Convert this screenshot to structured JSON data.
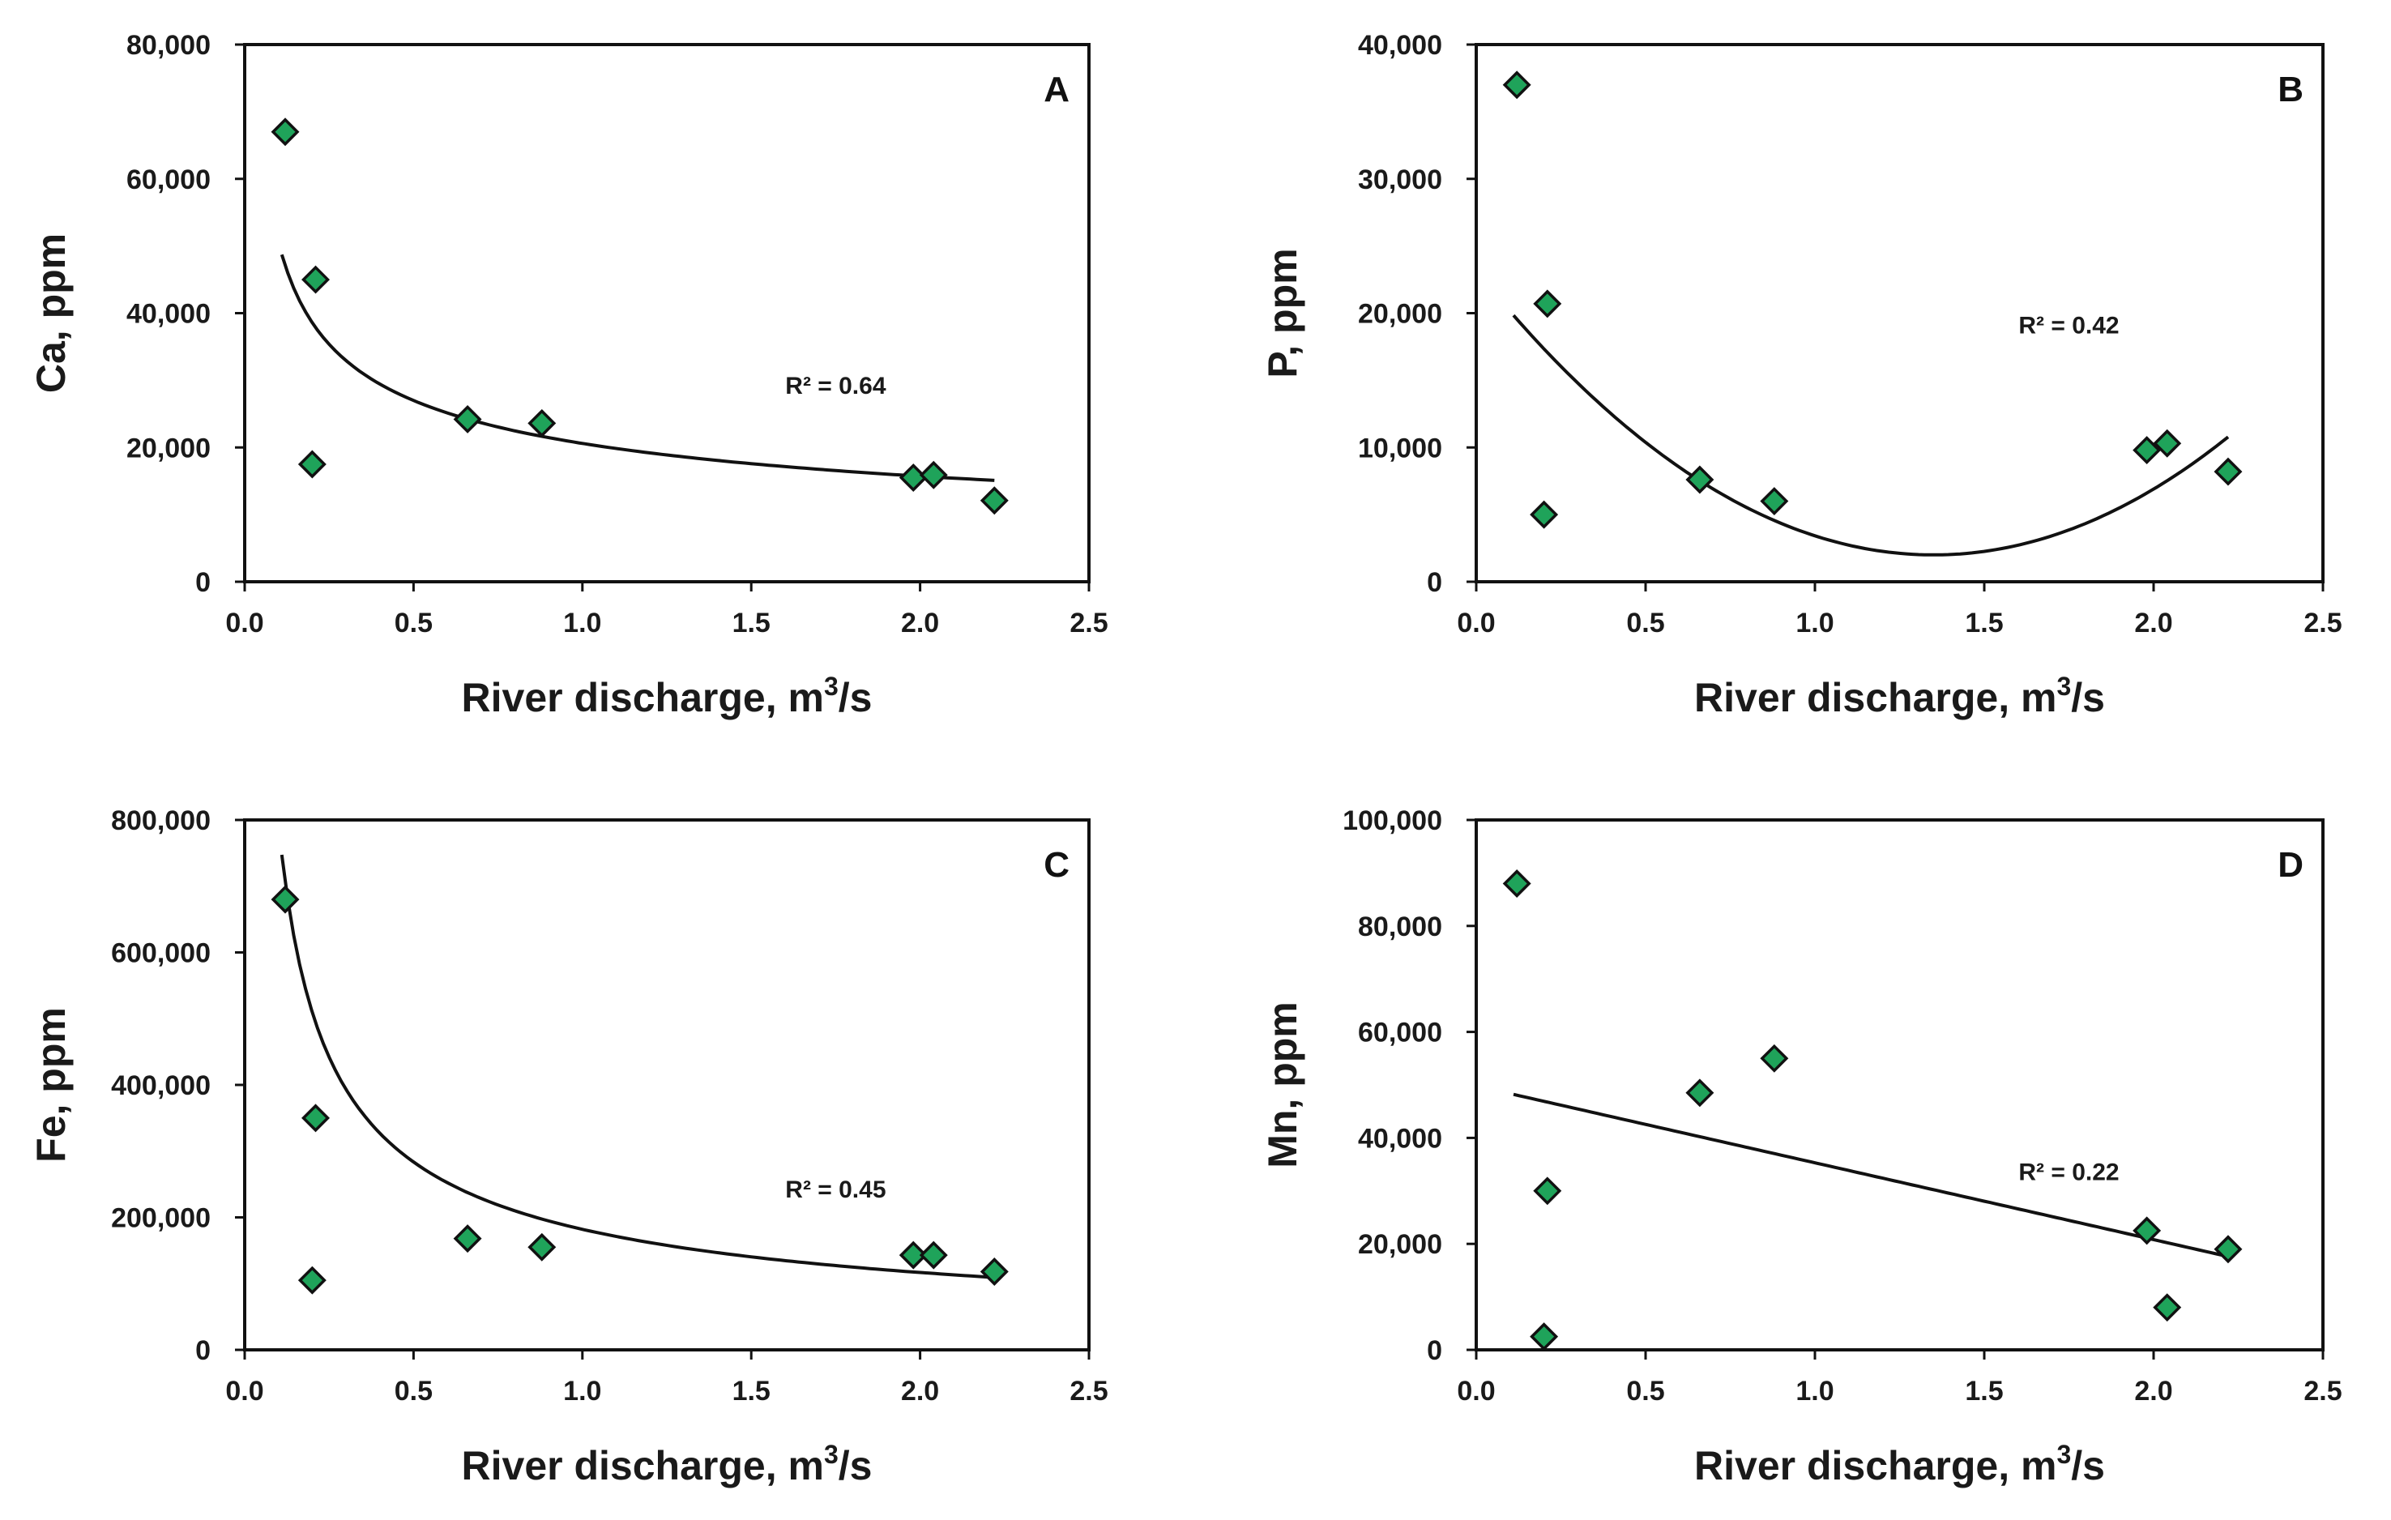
{
  "chart_data": [
    {
      "type": "scatter",
      "panel": "A",
      "xlabel": "River discharge, m",
      "xlabel_sup": "3",
      "xlabel_tail": "/s",
      "ylabel": "Ca, ppm",
      "xlim": [
        0,
        2.5
      ],
      "ylim": [
        0,
        80000
      ],
      "xticks": [
        "0.0",
        "0.5",
        "1.0",
        "1.5",
        "2.0",
        "2.5"
      ],
      "yticks": [
        "0",
        "20,000",
        "40,000",
        "60,000",
        "80,000"
      ],
      "x": [
        0.12,
        0.2,
        0.21,
        0.66,
        0.88,
        1.98,
        2.04,
        2.22
      ],
      "y": [
        67000,
        17500,
        45000,
        24200,
        23600,
        15500,
        15900,
        12100
      ],
      "trendline": {
        "type": "power",
        "a": 20600,
        "b": -0.39,
        "x_range": [
          0.11,
          2.22
        ]
      },
      "r2_label": "R² = 0.64",
      "r2_at": [
        1.75,
        28000
      ],
      "marker_color": "#1fa35a"
    },
    {
      "type": "scatter",
      "panel": "B",
      "xlabel": "River discharge, m",
      "xlabel_sup": "3",
      "xlabel_tail": "/s",
      "ylabel": "P, ppm",
      "xlim": [
        0,
        2.5
      ],
      "ylim": [
        0,
        40000
      ],
      "xticks": [
        "0.0",
        "0.5",
        "1.0",
        "1.5",
        "2.0",
        "2.5"
      ],
      "yticks": [
        "0",
        "10,000",
        "20,000",
        "30,000",
        "40,000"
      ],
      "x": [
        0.12,
        0.2,
        0.21,
        0.66,
        0.88,
        1.98,
        2.04,
        2.22
      ],
      "y": [
        37000,
        5000,
        20700,
        7600,
        6000,
        9800,
        10300,
        8200
      ],
      "trendline": {
        "type": "poly2",
        "a": 11600,
        "b": 0,
        "vx": 1.35,
        "vy": 2000,
        "x_range": [
          0.11,
          2.22
        ]
      },
      "r2_label": "R² = 0.42",
      "r2_at": [
        1.75,
        18500
      ],
      "marker_color": "#1fa35a"
    },
    {
      "type": "scatter",
      "panel": "C",
      "xlabel": "River discharge, m",
      "xlabel_sup": "3",
      "xlabel_tail": "/s",
      "ylabel": "Fe, ppm",
      "xlim": [
        0,
        2.5
      ],
      "ylim": [
        0,
        800000
      ],
      "xticks": [
        "0.0",
        "0.5",
        "1.0",
        "1.5",
        "2.0",
        "2.5"
      ],
      "yticks": [
        "0",
        "200,000",
        "400,000",
        "600,000",
        "800,000"
      ],
      "x": [
        0.12,
        0.2,
        0.21,
        0.66,
        0.88,
        1.98,
        2.04,
        2.22
      ],
      "y": [
        680000,
        105000,
        350000,
        168000,
        155000,
        143000,
        143000,
        118000
      ],
      "trendline": {
        "type": "power",
        "a": 182000,
        "b": -0.64,
        "x_range": [
          0.11,
          2.22
        ]
      },
      "r2_label": "R² = 0.45",
      "r2_at": [
        1.75,
        230000
      ],
      "marker_color": "#1fa35a"
    },
    {
      "type": "scatter",
      "panel": "D",
      "xlabel": "River discharge, m",
      "xlabel_sup": "3",
      "xlabel_tail": "/s",
      "ylabel": "Mn, ppm",
      "xlim": [
        0,
        2.5
      ],
      "ylim": [
        0,
        100000
      ],
      "xticks": [
        "0.0",
        "0.5",
        "1.0",
        "1.5",
        "2.0",
        "2.5"
      ],
      "yticks": [
        "0",
        "20,000",
        "40,000",
        "60,000",
        "80,000",
        "100,000"
      ],
      "x": [
        0.12,
        0.2,
        0.21,
        0.66,
        0.88,
        1.98,
        2.04,
        2.22
      ],
      "y": [
        88000,
        2500,
        30000,
        48500,
        55000,
        22500,
        8000,
        19000
      ],
      "trendline": {
        "type": "linear",
        "m": -14500,
        "c": 49800,
        "x_range": [
          0.11,
          2.22
        ]
      },
      "r2_label": "R² = 0.22",
      "r2_at": [
        1.75,
        32000
      ],
      "marker_color": "#1fa35a"
    }
  ]
}
